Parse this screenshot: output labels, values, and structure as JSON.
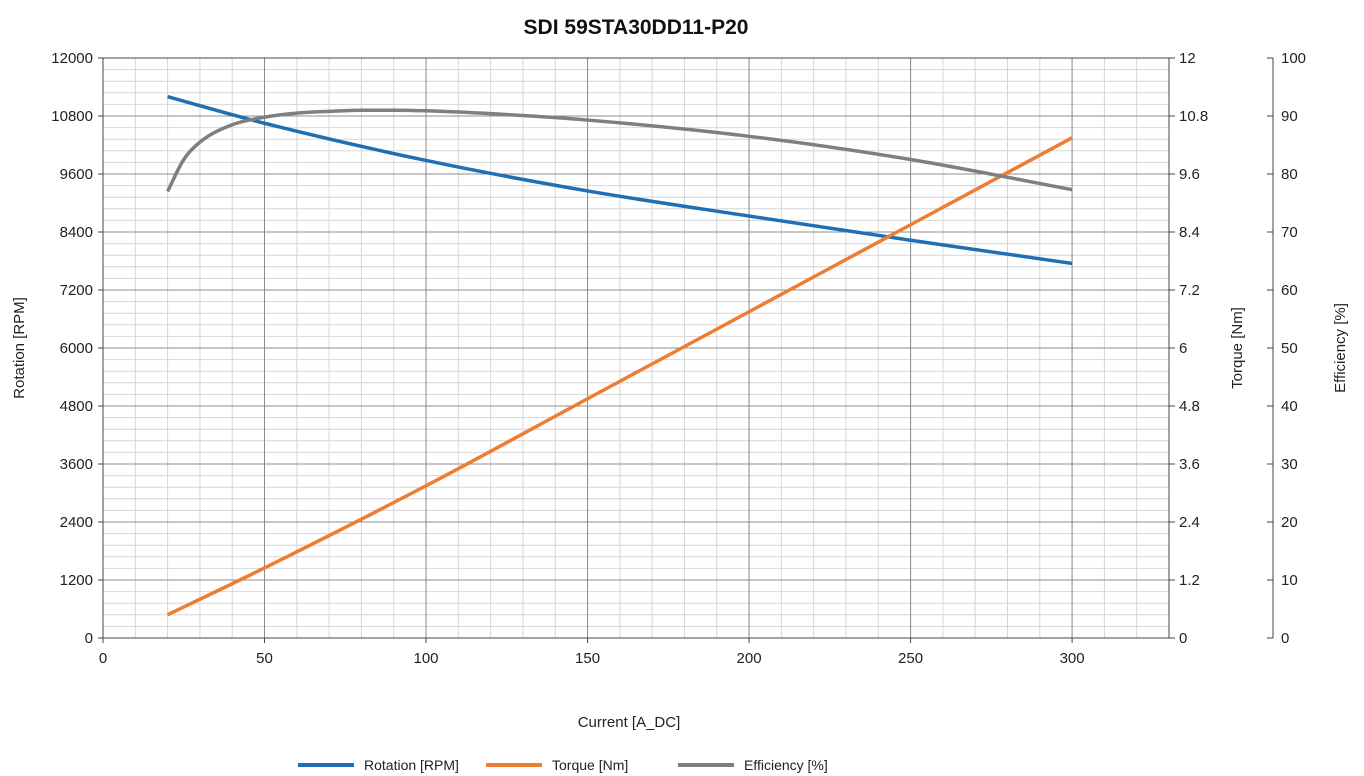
{
  "chart_data": {
    "type": "line",
    "title": "SDI 59STA30DD11-P20",
    "xlabel": "Current [A_DC]",
    "ylabel_left": "Rotation [RPM]",
    "ylabel_right1": "Torque [Nm]",
    "ylabel_right2": "Efficiency [%]",
    "xlim": [
      0,
      330
    ],
    "xticks": [
      0,
      50,
      100,
      150,
      200,
      250,
      300
    ],
    "y_left_lim": [
      0,
      12000
    ],
    "y_left_ticks": [
      0,
      1200,
      2400,
      3600,
      4800,
      6000,
      7200,
      8400,
      9600,
      10800,
      12000
    ],
    "y_right1_lim": [
      0,
      12
    ],
    "y_right1_ticks": [
      "0",
      "1.2",
      "2.4",
      "3.6",
      "4.8",
      "6",
      "7.2",
      "8.4",
      "9.6",
      "10.8",
      "12"
    ],
    "y_right2_lim": [
      0,
      100
    ],
    "y_right2_ticks": [
      0,
      10,
      20,
      30,
      40,
      50,
      60,
      70,
      80,
      90,
      100
    ],
    "grid": true,
    "legend_position": "bottom",
    "series": [
      {
        "name": "Rotation [RPM]",
        "axis": "left",
        "color": "#1f6fb5",
        "x": [
          20,
          50,
          100,
          150,
          200,
          250,
          300
        ],
        "y": [
          11200,
          10650,
          9880,
          9250,
          8730,
          8230,
          7750
        ]
      },
      {
        "name": "Torque [Nm]",
        "axis": "right1",
        "color": "#ed7d31",
        "x": [
          20,
          50,
          100,
          150,
          200,
          250,
          300
        ],
        "y": [
          0.48,
          1.45,
          3.15,
          4.95,
          6.75,
          8.55,
          10.35
        ]
      },
      {
        "name": "Efficiency [%]",
        "axis": "right2",
        "color": "#7f7f7f",
        "x": [
          20,
          25,
          30,
          40,
          50,
          60,
          70,
          80,
          90,
          100,
          120,
          150,
          200,
          250,
          300
        ],
        "y": [
          77,
          82.5,
          85.5,
          88.5,
          89.8,
          90.5,
          90.8,
          91,
          91,
          90.9,
          90.4,
          89.3,
          86.5,
          82.5,
          77.3
        ]
      }
    ]
  }
}
